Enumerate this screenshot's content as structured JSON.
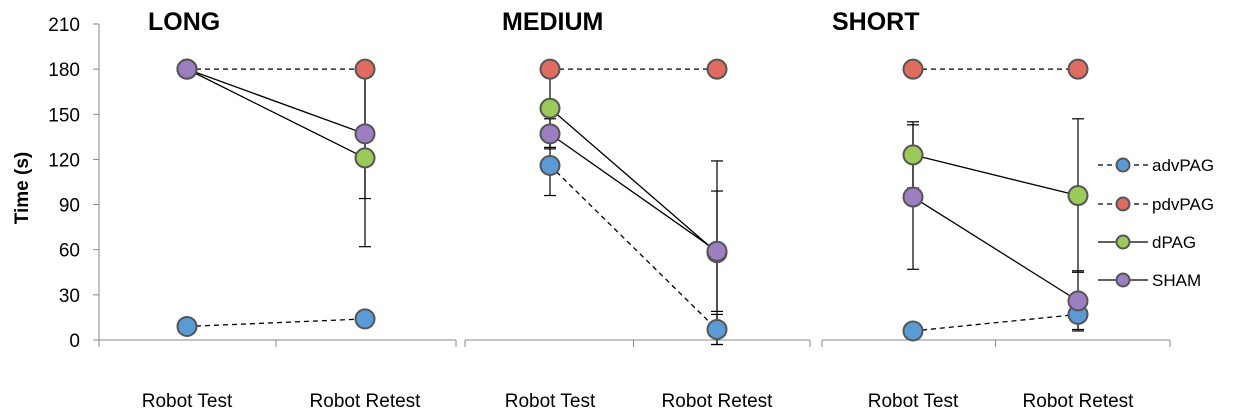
{
  "chart_data": {
    "type": "line",
    "ylabel": "Time (s)",
    "ylim": [
      0,
      210
    ],
    "yticks": [
      0,
      30,
      60,
      90,
      120,
      150,
      180,
      210
    ],
    "categories": [
      "Robot Test",
      "Robot Retest"
    ],
    "legend": {
      "placement": "right"
    },
    "series_styles": [
      {
        "name": "advPAG",
        "color": "#5b9bd5",
        "dash": "dashed"
      },
      {
        "name": "pdvPAG",
        "color": "#e06c5f",
        "dash": "dashed"
      },
      {
        "name": "dPAG",
        "color": "#9bc95a",
        "dash": "solid"
      },
      {
        "name": "SHAM",
        "color": "#9b7fc0",
        "dash": "solid"
      }
    ],
    "panels": [
      {
        "title": "LONG",
        "series": [
          {
            "name": "advPAG",
            "values": [
              9,
              14
            ],
            "err": [
              null,
              null
            ]
          },
          {
            "name": "pdvPAG",
            "values": [
              180,
              180
            ],
            "err": [
              null,
              null
            ]
          },
          {
            "name": "dPAG",
            "values": [
              180,
              121
            ],
            "err": [
              null,
              59
            ]
          },
          {
            "name": "SHAM",
            "values": [
              180,
              137
            ],
            "err": [
              null,
              43
            ]
          }
        ]
      },
      {
        "title": "MEDIUM",
        "series": [
          {
            "name": "advPAG",
            "values": [
              116,
              7
            ],
            "err": [
              20,
              10
            ]
          },
          {
            "name": "pdvPAG",
            "values": [
              180,
              180
            ],
            "err": [
              null,
              null
            ]
          },
          {
            "name": "dPAG",
            "values": [
              154,
              58
            ],
            "err": [
              26,
              61
            ]
          },
          {
            "name": "SHAM",
            "values": [
              137,
              59
            ],
            "err": [
              10,
              40
            ]
          }
        ]
      },
      {
        "title": "SHORT",
        "series": [
          {
            "name": "advPAG",
            "values": [
              6,
              17
            ],
            "err": [
              null,
              10
            ]
          },
          {
            "name": "pdvPAG",
            "values": [
              180,
              180
            ],
            "err": [
              null,
              null
            ]
          },
          {
            "name": "dPAG",
            "values": [
              123,
              96
            ],
            "err": [
              22,
              51
            ]
          },
          {
            "name": "SHAM",
            "values": [
              95,
              26
            ],
            "err": [
              48,
              20
            ]
          }
        ]
      }
    ]
  }
}
